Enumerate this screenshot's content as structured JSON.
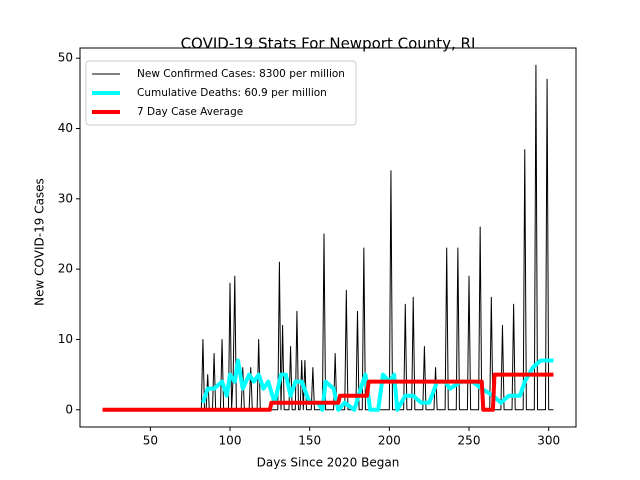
{
  "chart_data": {
    "type": "line",
    "title": "COVID-19 Stats For Newport County, RI",
    "x_label": "Days Since 2020 Began",
    "y_label": "New COVID-19 Cases",
    "xlim": [
      5.85,
      317.15
    ],
    "ylim": [
      -2.45,
      51.45
    ],
    "xticks": [
      50,
      100,
      150,
      200,
      250,
      300
    ],
    "yticks": [
      0,
      10,
      20,
      30,
      40,
      50
    ],
    "legend": "upper left",
    "series": [
      {
        "name": "New Confirmed Cases: 8300 per million",
        "color": "#000000",
        "width": 1,
        "x": [
          20,
          82,
          83,
          84,
          85,
          86,
          87,
          89,
          90,
          91,
          94,
          95,
          96,
          99,
          100,
          101,
          102,
          103,
          104,
          107,
          108,
          109,
          112,
          113,
          114,
          117,
          118,
          119,
          130,
          131,
          132,
          133,
          134,
          137,
          138,
          139,
          141,
          142,
          143,
          144,
          145,
          146,
          147,
          148,
          151,
          152,
          153,
          158,
          159,
          160,
          165,
          166,
          167,
          172,
          173,
          174,
          179,
          180,
          181,
          183,
          184,
          185,
          200,
          201,
          202,
          209,
          210,
          211,
          214,
          215,
          216,
          221,
          222,
          223,
          228,
          229,
          230,
          235,
          236,
          237,
          242,
          243,
          244,
          249,
          250,
          251,
          256,
          257,
          258,
          263,
          264,
          265,
          270,
          271,
          272,
          277,
          278,
          279,
          284,
          285,
          286,
          291,
          292,
          293,
          298,
          299,
          300,
          303
        ],
        "values": [
          0,
          0,
          10,
          0,
          0,
          5,
          0,
          0,
          8,
          0,
          0,
          10,
          0,
          0,
          18,
          0,
          5,
          19,
          0,
          0,
          6,
          0,
          0,
          6,
          0,
          0,
          10,
          0,
          0,
          21,
          0,
          12,
          0,
          0,
          9,
          0,
          0,
          14,
          0,
          0,
          7,
          0,
          7,
          0,
          0,
          6,
          0,
          0,
          25,
          0,
          0,
          8,
          0,
          0,
          17,
          0,
          0,
          14,
          0,
          0,
          23,
          0,
          0,
          34,
          0,
          0,
          15,
          0,
          0,
          16,
          0,
          0,
          9,
          0,
          0,
          6,
          0,
          0,
          23,
          0,
          0,
          23,
          0,
          0,
          19,
          0,
          0,
          26,
          0,
          0,
          16,
          0,
          0,
          12,
          0,
          0,
          15,
          0,
          0,
          37,
          0,
          0,
          49,
          0,
          0,
          47,
          0,
          0
        ]
      },
      {
        "name": "Cumulative Deaths: 60.9 per million",
        "color": "#00ffff",
        "width": 4,
        "x": [
          83,
          86,
          90,
          95,
          98,
          100,
          103,
          105,
          108,
          112,
          115,
          118,
          121,
          124,
          128,
          132,
          135,
          138,
          141,
          145,
          150,
          155,
          158,
          160,
          165,
          168,
          172,
          178,
          182,
          185,
          188,
          193,
          196,
          200,
          203,
          205,
          210,
          215,
          220,
          225,
          230,
          235,
          238,
          245,
          252,
          258,
          265,
          270,
          275,
          282,
          285,
          290,
          295,
          303
        ],
        "values": [
          1,
          3,
          3,
          4,
          2,
          5,
          4,
          7,
          3,
          5,
          4,
          5,
          3,
          4,
          1,
          5,
          5,
          2,
          4,
          4,
          1,
          1,
          0,
          4,
          3,
          0,
          1,
          0,
          3,
          5,
          0,
          0,
          5,
          4,
          5,
          0,
          2,
          2,
          1,
          1,
          4,
          4,
          3,
          4,
          4,
          3,
          2,
          1,
          2,
          2,
          4,
          6,
          7,
          7
        ]
      },
      {
        "name": "7 Day Case Average",
        "color": "#ff0000",
        "width": 4,
        "x": [
          20,
          125,
          126,
          168,
          169,
          186,
          187,
          258,
          259,
          265,
          266,
          303
        ],
        "values": [
          0,
          0,
          1,
          1,
          2,
          2,
          4,
          4,
          0,
          0,
          5,
          5
        ]
      }
    ]
  }
}
